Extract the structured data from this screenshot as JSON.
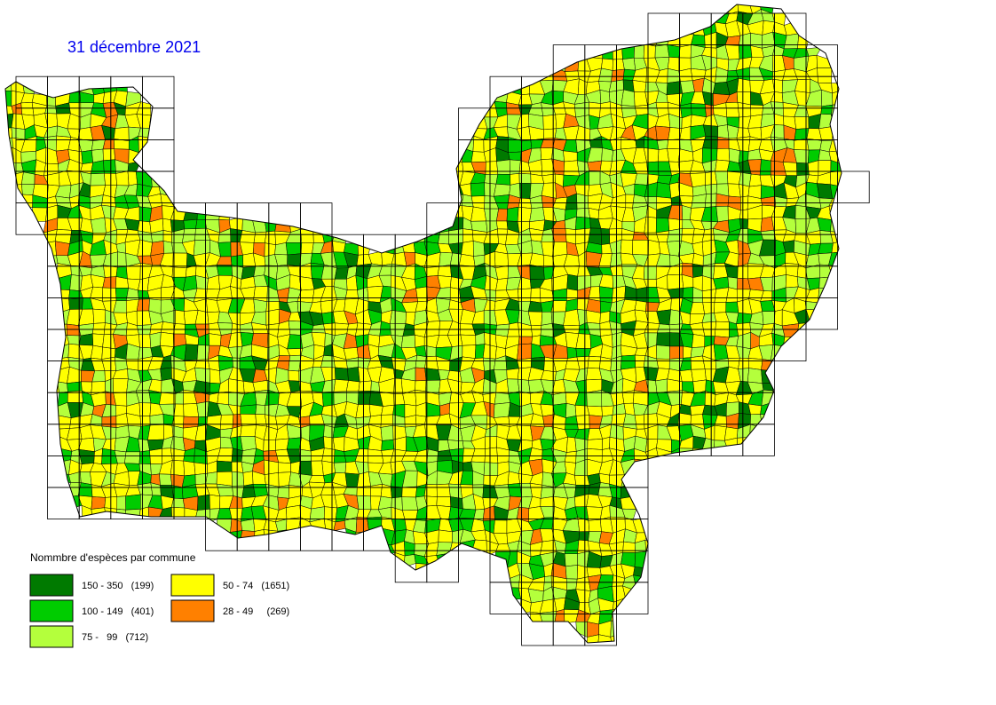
{
  "title": "31 décembre 2021",
  "legend": {
    "title": "Nommbre d'espèces par commune",
    "items": [
      {
        "label": "150 - 350   (199)",
        "color": "#007a00"
      },
      {
        "label": "100 - 149   (401)",
        "color": "#00cc00"
      },
      {
        "label": "75 -   99   (712)",
        "color": "#b4ff3c"
      },
      {
        "label": "50 - 74   (1651)",
        "color": "#ffff00"
      },
      {
        "label": "28 - 49     (269)",
        "color": "#ff8000"
      }
    ]
  }
}
